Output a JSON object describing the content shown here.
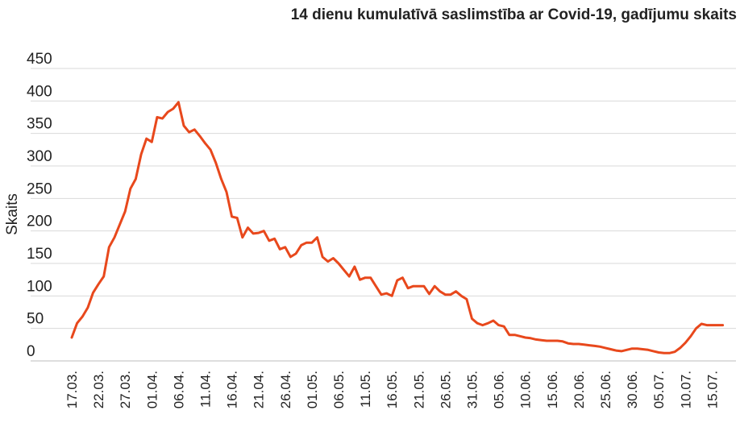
{
  "chart_data": {
    "type": "line",
    "title": "14 dienu kumulatīvā saslimstība ar Covid-19, gadījumu skaits",
    "ylabel": "Skaits",
    "xlabel": "",
    "ylim": [
      0,
      450
    ],
    "yticks": [
      0,
      50,
      100,
      150,
      200,
      250,
      300,
      350,
      400,
      450
    ],
    "grid": true,
    "legend": "none",
    "line_color": "#e8481c",
    "grid_color": "#d9d9d9",
    "x_tick_labels": [
      "17.03.",
      "22.03.",
      "27.03.",
      "01.04.",
      "06.04.",
      "11.04.",
      "16.04.",
      "21.04.",
      "26.04.",
      "01.05.",
      "06.05.",
      "11.05.",
      "16.05.",
      "21.05.",
      "26.05.",
      "31.05.",
      "05.06.",
      "10.06.",
      "15.06.",
      "20.06.",
      "25.06.",
      "30.06.",
      "05.07.",
      "10.07.",
      "15.07."
    ],
    "series": [
      {
        "name": "",
        "x_start": "17.03.",
        "values": [
          36,
          58,
          68,
          82,
          105,
          118,
          130,
          175,
          190,
          210,
          230,
          265,
          280,
          318,
          342,
          337,
          375,
          373,
          383,
          388,
          398,
          362,
          352,
          356,
          346,
          335,
          325,
          305,
          280,
          260,
          222,
          220,
          190,
          205,
          196,
          197,
          200,
          185,
          188,
          172,
          175,
          160,
          165,
          178,
          182,
          182,
          190,
          160,
          153,
          158,
          150,
          140,
          130,
          145,
          125,
          128,
          128,
          115,
          102,
          104,
          100,
          124,
          128,
          112,
          115,
          115,
          115,
          103,
          115,
          107,
          102,
          102,
          107,
          100,
          95,
          65,
          58,
          55,
          58,
          62,
          55,
          53,
          40,
          40,
          38,
          36,
          35,
          33,
          32,
          31,
          31,
          31,
          30,
          27,
          26,
          26,
          25,
          24,
          23,
          22,
          20,
          18,
          16,
          15,
          17,
          19,
          19,
          18,
          17,
          15,
          13,
          12,
          12,
          14,
          20,
          28,
          38,
          50,
          57,
          55,
          55,
          55,
          55
        ]
      }
    ]
  }
}
